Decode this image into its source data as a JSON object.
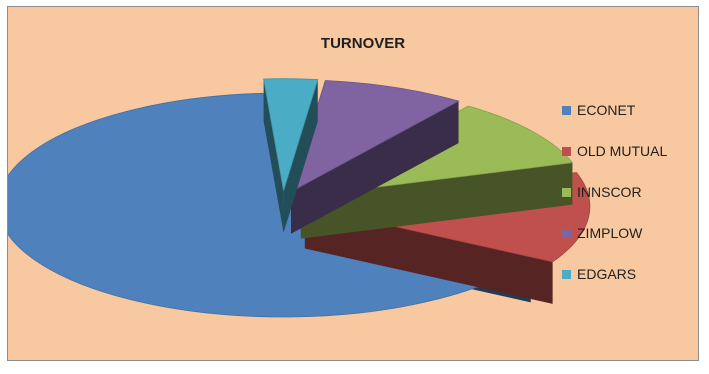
{
  "chart_data": {
    "type": "pie",
    "title": "TURNOVER",
    "legend_position": "right",
    "exploded": true,
    "style": "3d",
    "background": "#f8c9a0",
    "categories": [
      "ECONET",
      "OLD MUTUAL",
      "INNSCOR",
      "ZIMPLOW",
      "EDGARS"
    ],
    "values": [
      65,
      13,
      10,
      8,
      3
    ],
    "colors": [
      "#4f81bd",
      "#c0504d",
      "#9bbb59",
      "#8064a2",
      "#4bacc6"
    ]
  }
}
